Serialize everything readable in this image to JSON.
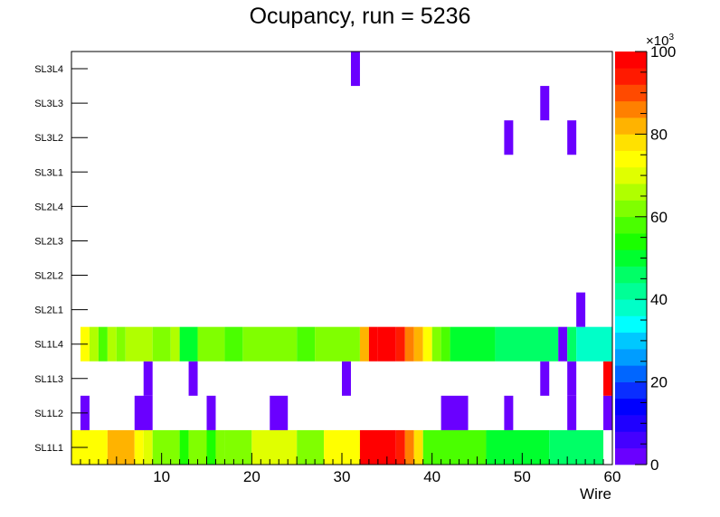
{
  "chart_data": {
    "type": "heatmap",
    "title": "Ocupancy, run = 5236",
    "xlabel": "Wire",
    "ylabel": "",
    "xlim": [
      0,
      60
    ],
    "x_ticks": [
      10,
      20,
      30,
      40,
      50,
      60
    ],
    "y_categories": [
      "SL1L1",
      "SL1L2",
      "SL1L3",
      "SL1L4",
      "SL2L1",
      "SL2L2",
      "SL2L3",
      "SL2L4",
      "SL3L1",
      "SL3L2",
      "SL3L3",
      "SL3L4"
    ],
    "z_range": [
      0,
      100
    ],
    "z_ticks": [
      0,
      20,
      40,
      60,
      80,
      100
    ],
    "z_multiplier": "×10",
    "z_multiplier_exp": "3",
    "legend_position": "right",
    "grid": false,
    "palette": [
      "#6a00ff",
      "#4400ff",
      "#1f00ff",
      "#0000ff",
      "#0a2eff",
      "#0066ff",
      "#009dff",
      "#00c8ff",
      "#00ffff",
      "#00ffc8",
      "#00ff96",
      "#00ff66",
      "#00ff2e",
      "#1aff00",
      "#4aff00",
      "#80ff00",
      "#b0ff00",
      "#e0ff00",
      "#ffff00",
      "#ffe100",
      "#ffb300",
      "#ff8000",
      "#ff4a00",
      "#ff1a00",
      "#ff0000"
    ],
    "cells": [
      {
        "row": "SL1L1",
        "runs": [
          [
            1,
            4,
            74
          ],
          [
            5,
            7,
            80
          ],
          [
            8,
            8,
            75
          ],
          [
            9,
            9,
            68
          ],
          [
            10,
            12,
            60
          ],
          [
            13,
            13,
            55
          ],
          [
            14,
            15,
            60
          ],
          [
            16,
            16,
            55
          ],
          [
            17,
            17,
            62
          ],
          [
            18,
            20,
            60
          ],
          [
            21,
            25,
            70
          ],
          [
            26,
            28,
            63
          ],
          [
            29,
            32,
            72
          ],
          [
            33,
            36,
            99
          ],
          [
            37,
            37,
            93
          ],
          [
            38,
            38,
            84
          ],
          [
            39,
            39,
            77
          ],
          [
            40,
            46,
            58
          ],
          [
            47,
            53,
            50
          ],
          [
            54,
            59,
            44
          ]
        ]
      },
      {
        "row": "SL1L2",
        "runs": [
          [
            2,
            2,
            3
          ],
          [
            8,
            9,
            3
          ],
          [
            16,
            16,
            3
          ],
          [
            23,
            24,
            3
          ],
          [
            42,
            44,
            3
          ],
          [
            49,
            49,
            3
          ],
          [
            56,
            56,
            3
          ],
          [
            60,
            60,
            3
          ]
        ]
      },
      {
        "row": "SL1L3",
        "runs": [
          [
            9,
            9,
            3
          ],
          [
            14,
            14,
            3
          ],
          [
            31,
            31,
            3
          ],
          [
            53,
            53,
            3
          ],
          [
            56,
            56,
            3
          ],
          [
            60,
            60,
            99
          ]
        ]
      },
      {
        "row": "SL1L4",
        "runs": [
          [
            2,
            2,
            72
          ],
          [
            3,
            3,
            64
          ],
          [
            4,
            4,
            58
          ],
          [
            5,
            5,
            66
          ],
          [
            6,
            6,
            62
          ],
          [
            7,
            9,
            66
          ],
          [
            10,
            11,
            60
          ],
          [
            12,
            12,
            66
          ],
          [
            13,
            14,
            49
          ],
          [
            15,
            17,
            60
          ],
          [
            18,
            19,
            57
          ],
          [
            20,
            25,
            63
          ],
          [
            26,
            27,
            56
          ],
          [
            28,
            32,
            60
          ],
          [
            33,
            33,
            82
          ],
          [
            34,
            34,
            99
          ],
          [
            35,
            36,
            97
          ],
          [
            37,
            37,
            93
          ],
          [
            38,
            38,
            86
          ],
          [
            39,
            39,
            81
          ],
          [
            40,
            40,
            75
          ],
          [
            41,
            41,
            60
          ],
          [
            42,
            42,
            57
          ],
          [
            43,
            47,
            48
          ],
          [
            48,
            54,
            44
          ],
          [
            55,
            55,
            3
          ],
          [
            56,
            56,
            44
          ],
          [
            57,
            60,
            37
          ]
        ]
      },
      {
        "row": "SL2L1",
        "runs": [
          [
            57,
            57,
            3
          ]
        ]
      },
      {
        "row": "SL2L2",
        "runs": []
      },
      {
        "row": "SL2L3",
        "runs": []
      },
      {
        "row": "SL2L4",
        "runs": []
      },
      {
        "row": "SL3L1",
        "runs": []
      },
      {
        "row": "SL3L2",
        "runs": [
          [
            49,
            49,
            3
          ],
          [
            56,
            56,
            3
          ]
        ]
      },
      {
        "row": "SL3L3",
        "runs": [
          [
            53,
            53,
            3
          ]
        ]
      },
      {
        "row": "SL3L4",
        "runs": [
          [
            32,
            32,
            3
          ]
        ]
      }
    ]
  }
}
